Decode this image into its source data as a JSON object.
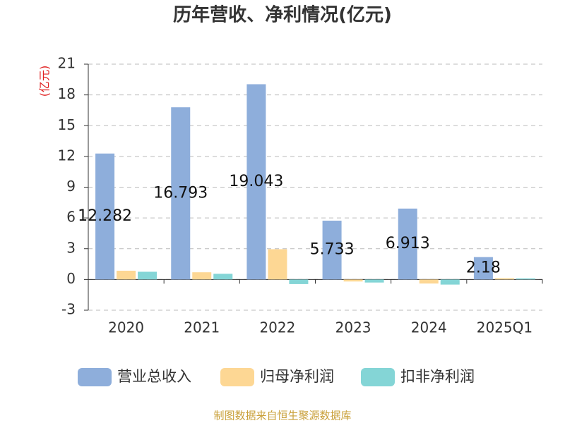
{
  "chart_data": {
    "type": "bar",
    "title": "历年营收、净利情况(亿元)",
    "y_label": "(亿元)",
    "source": "制图数据来自恒生聚源数据库",
    "categories": [
      "2020",
      "2021",
      "2022",
      "2023",
      "2024",
      "2025Q1"
    ],
    "series": [
      {
        "name": "营业总收入",
        "color": "#8eaedb",
        "values": [
          12.282,
          16.793,
          19.043,
          5.733,
          6.913,
          2.18
        ],
        "data_labels": true
      },
      {
        "name": "归母净利润",
        "color": "#fdd794",
        "values": [
          0.85,
          0.7,
          2.95,
          -0.2,
          -0.4,
          0.12
        ]
      },
      {
        "name": "扣非净利润",
        "color": "#84d5d6",
        "values": [
          0.75,
          0.55,
          -0.45,
          -0.3,
          -0.5,
          0.1
        ]
      }
    ],
    "ylim": [
      -3,
      21
    ],
    "yticks": [
      -3,
      0,
      3,
      6,
      9,
      12,
      15,
      18,
      21
    ],
    "grid": true
  }
}
